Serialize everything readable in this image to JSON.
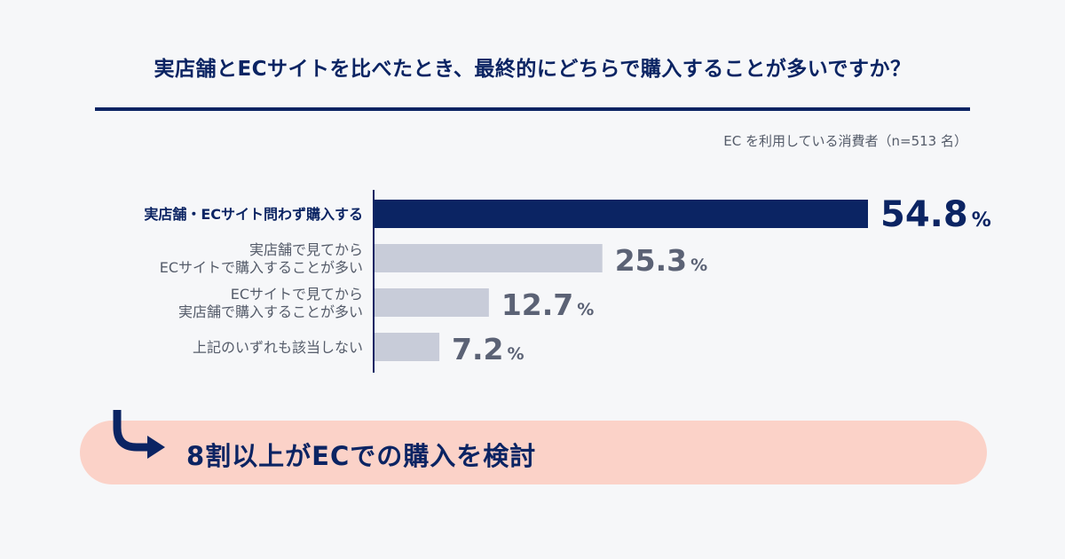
{
  "header": {
    "title": "実店舗とECサイトを比べたとき、最終的にどちらで購入することが多いですか？",
    "note": "EC を利用している消費者（n=513 名）"
  },
  "chart_data": {
    "type": "bar",
    "orientation": "horizontal",
    "categories": [
      [
        "実店舗・ECサイト問わず購入する"
      ],
      [
        "実店舗で見てから",
        "ECサイトで購入することが多い"
      ],
      [
        "ECサイトで見てから",
        "実店舗で購入することが多い"
      ],
      [
        "上記のいずれも該当しない"
      ]
    ],
    "values": [
      54.8,
      25.3,
      12.7,
      7.2
    ],
    "value_labels": [
      "54.8",
      "25.3",
      "12.7",
      "7.2"
    ],
    "unit": "%",
    "xlim": [
      0,
      100
    ],
    "colors": {
      "highlight": "#0b2463",
      "normal": "#c8ccd9",
      "value_normal": "#5b6275"
    },
    "highlight_index": 0,
    "grid": false,
    "legend": "none"
  },
  "callout": {
    "text": "8割以上がECでの購入を検討",
    "arrow_icon": "curved-arrow-icon",
    "background": "#fbd2c8"
  }
}
